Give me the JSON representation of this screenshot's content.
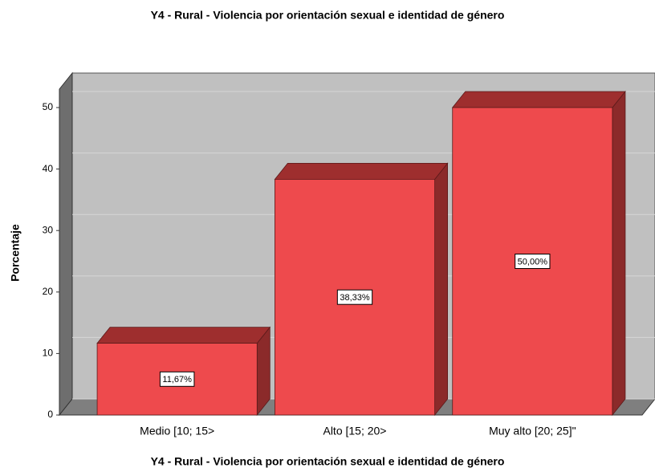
{
  "chart_data": {
    "type": "bar3d",
    "title": "Y4 - Rural  - Violencia por orientación sexual e identidad de género",
    "xlabel": "Y4 - Rural  - Violencia por orientación sexual e identidad de género",
    "ylabel": "Porcentaje",
    "categories": [
      "Medio [10; 15>",
      "Alto [15; 20>",
      "Muy alto [20; 25]\""
    ],
    "values": [
      11.67,
      38.33,
      50.0
    ],
    "value_labels": [
      "11,67%",
      "38,33%",
      "50,00%"
    ],
    "color": "#ee4a4d",
    "ylim": [
      0,
      53
    ],
    "yticks": [
      0,
      10,
      20,
      30,
      40,
      50
    ],
    "grid": true
  }
}
